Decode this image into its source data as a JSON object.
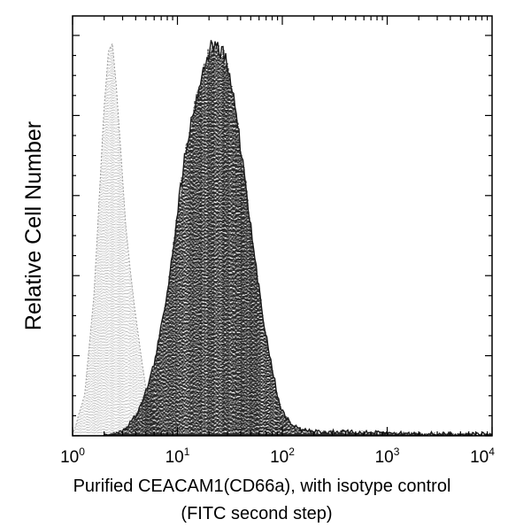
{
  "chart_data": {
    "type": "area",
    "xlabel": "Purified CEACAM1(CD66a), with isotype control",
    "xlabel_line2": "(FITC second step)",
    "ylabel": "Relative Cell Number",
    "xscale": "log",
    "xlim": [
      1,
      10000
    ],
    "ylim": [
      0,
      100
    ],
    "x_tick_labels": [
      {
        "base": "10",
        "exp": "0"
      },
      {
        "base": "10",
        "exp": "1"
      },
      {
        "base": "10",
        "exp": "2"
      },
      {
        "base": "10",
        "exp": "3"
      },
      {
        "base": "10",
        "exp": "4"
      }
    ],
    "grid": false,
    "series": [
      {
        "role": "isotype control",
        "color": "#9a9a9a",
        "style": "dotted-fill",
        "x": [
          1.0,
          1.3,
          1.6,
          1.8,
          2.0,
          2.2,
          2.4,
          2.6,
          2.9,
          3.2,
          3.6,
          4.0,
          4.5,
          5.0,
          5.6,
          6.3,
          7.0,
          8.0
        ],
        "y": [
          0,
          10,
          35,
          60,
          82,
          96,
          98,
          88,
          70,
          53,
          40,
          30,
          20,
          12,
          7,
          3,
          1,
          0
        ]
      },
      {
        "role": "CEACAM1",
        "color": "#1a1a1a",
        "style": "noisy-fill",
        "x": [
          2.0,
          3.0,
          4.0,
          5.0,
          6.0,
          7.0,
          8.0,
          9.0,
          10.0,
          11.0,
          12.0,
          14.0,
          16.0,
          18.0,
          20.0,
          22.0,
          25.0,
          28.0,
          32.0,
          36.0,
          40.0,
          45.0,
          50.0,
          56.0,
          63.0,
          70.0,
          80.0,
          90.0,
          100.0,
          120.0,
          150.0,
          200.0,
          300.0,
          500.0,
          1000.0,
          3000.0,
          10000.0
        ],
        "y": [
          0,
          1,
          5,
          11,
          18,
          27,
          36,
          46,
          56,
          64,
          72,
          80,
          87,
          92,
          96,
          98,
          96,
          95,
          88,
          82,
          72,
          63,
          52,
          42,
          33,
          25,
          17,
          10,
          6,
          3,
          1.5,
          1.0,
          1.0,
          0.8,
          0.6,
          0.4,
          0.3
        ]
      }
    ]
  }
}
